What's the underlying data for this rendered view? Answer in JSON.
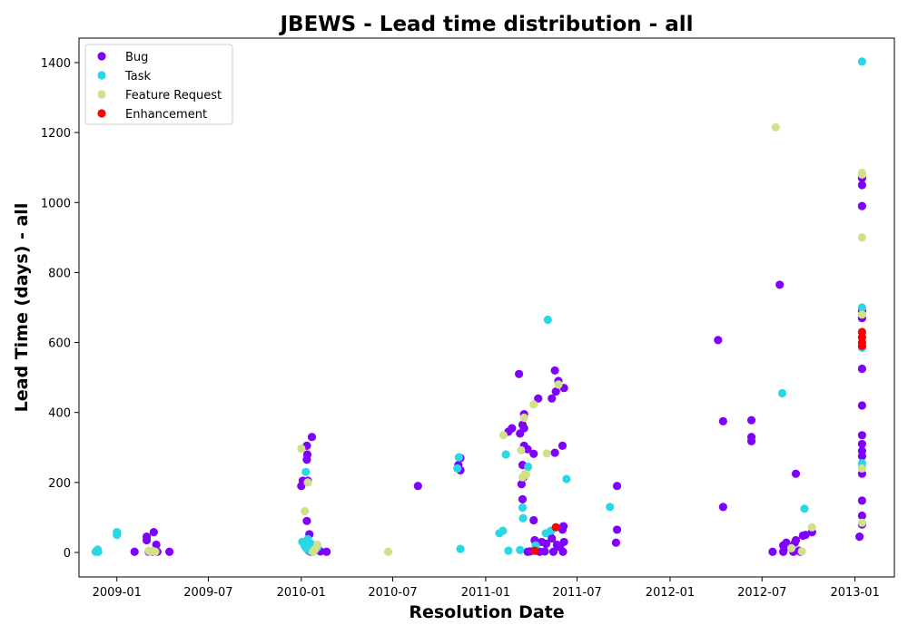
{
  "chart_data": {
    "type": "scatter",
    "title": "JBEWS - Lead time distribution - all",
    "xlabel": "Resolution Date",
    "ylabel": "Lead Time (days) - all",
    "xlim": [
      "2008-10-18",
      "2013-03-20"
    ],
    "ylim": [
      -70,
      1470
    ],
    "x_ticks": [
      "2009-01",
      "2009-07",
      "2010-01",
      "2010-07",
      "2011-01",
      "2011-07",
      "2012-01",
      "2012-07",
      "2013-01"
    ],
    "y_ticks": [
      0,
      200,
      400,
      600,
      800,
      1000,
      1200,
      1400
    ],
    "grid": false,
    "legend_position": "top-left",
    "series": [
      {
        "name": "Bug",
        "color": "#8000ff",
        "points": [
          [
            "2009-02-05",
            2
          ],
          [
            "2009-03-01",
            45
          ],
          [
            "2009-03-01",
            35
          ],
          [
            "2009-03-05",
            2
          ],
          [
            "2009-03-12",
            2
          ],
          [
            "2009-03-15",
            58
          ],
          [
            "2009-03-20",
            22
          ],
          [
            "2009-03-22",
            2
          ],
          [
            "2009-04-15",
            2
          ],
          [
            "2010-01-01",
            190
          ],
          [
            "2010-01-04",
            205
          ],
          [
            "2010-01-12",
            305
          ],
          [
            "2010-01-12",
            265
          ],
          [
            "2010-01-13",
            280
          ],
          [
            "2010-01-14",
            205
          ],
          [
            "2010-01-12",
            90
          ],
          [
            "2010-01-17",
            52
          ],
          [
            "2010-01-22",
            330
          ],
          [
            "2010-01-16",
            5
          ],
          [
            "2010-01-20",
            2
          ],
          [
            "2010-01-30",
            10
          ],
          [
            "2010-02-08",
            3
          ],
          [
            "2010-02-20",
            2
          ],
          [
            "2010-08-20",
            190
          ],
          [
            "2010-11-08",
            250
          ],
          [
            "2010-11-12",
            235
          ],
          [
            "2010-11-12",
            270
          ],
          [
            "2011-02-15",
            345
          ],
          [
            "2011-02-22",
            355
          ],
          [
            "2011-03-08",
            510
          ],
          [
            "2011-03-10",
            340
          ],
          [
            "2011-03-15",
            365
          ],
          [
            "2011-03-18",
            355
          ],
          [
            "2011-03-18",
            395
          ],
          [
            "2011-03-18",
            305
          ],
          [
            "2011-03-25",
            295
          ],
          [
            "2011-03-13",
            195
          ],
          [
            "2011-03-15",
            250
          ],
          [
            "2011-03-17",
            215
          ],
          [
            "2011-03-15",
            152
          ],
          [
            "2011-03-25",
            2
          ],
          [
            "2011-03-30",
            3
          ],
          [
            "2011-04-06",
            282
          ],
          [
            "2011-04-06",
            92
          ],
          [
            "2011-04-08",
            35
          ],
          [
            "2011-04-12",
            5
          ],
          [
            "2011-04-18",
            2
          ],
          [
            "2011-04-15",
            440
          ],
          [
            "2011-04-22",
            30
          ],
          [
            "2011-04-28",
            3
          ],
          [
            "2011-05-01",
            25
          ],
          [
            "2011-05-08",
            55
          ],
          [
            "2011-05-12",
            440
          ],
          [
            "2011-05-12",
            40
          ],
          [
            "2011-05-15",
            2
          ],
          [
            "2011-05-18",
            520
          ],
          [
            "2011-05-18",
            285
          ],
          [
            "2011-05-20",
            460
          ],
          [
            "2011-05-25",
            490
          ],
          [
            "2011-05-22",
            22
          ],
          [
            "2011-05-28",
            15
          ],
          [
            "2011-06-02",
            305
          ],
          [
            "2011-06-02",
            65
          ],
          [
            "2011-06-05",
            470
          ],
          [
            "2011-06-04",
            75
          ],
          [
            "2011-06-05",
            30
          ],
          [
            "2011-06-03",
            2
          ],
          [
            "2011-09-18",
            190
          ],
          [
            "2011-09-18",
            65
          ],
          [
            "2011-09-16",
            28
          ],
          [
            "2012-04-05",
            607
          ],
          [
            "2012-04-15",
            375
          ],
          [
            "2012-04-15",
            130
          ],
          [
            "2012-06-10",
            378
          ],
          [
            "2012-06-10",
            330
          ],
          [
            "2012-06-10",
            318
          ],
          [
            "2012-07-22",
            2
          ],
          [
            "2012-08-05",
            765
          ],
          [
            "2012-08-12",
            20
          ],
          [
            "2012-08-12",
            2
          ],
          [
            "2012-08-18",
            28
          ],
          [
            "2012-08-25",
            15
          ],
          [
            "2012-09-01",
            2
          ],
          [
            "2012-09-04",
            28
          ],
          [
            "2012-09-06",
            35
          ],
          [
            "2012-09-06",
            225
          ],
          [
            "2012-09-12",
            5
          ],
          [
            "2012-09-15",
            2
          ],
          [
            "2012-09-20",
            48
          ],
          [
            "2012-09-25",
            50
          ],
          [
            "2012-10-08",
            58
          ],
          [
            "2013-01-10",
            45
          ],
          [
            "2013-01-15",
            1050
          ],
          [
            "2013-01-15",
            1070
          ],
          [
            "2013-01-15",
            990
          ],
          [
            "2013-01-15",
            690
          ],
          [
            "2013-01-15",
            670
          ],
          [
            "2013-01-15",
            525
          ],
          [
            "2013-01-15",
            420
          ],
          [
            "2013-01-15",
            335
          ],
          [
            "2013-01-15",
            310
          ],
          [
            "2013-01-15",
            290
          ],
          [
            "2013-01-15",
            275
          ],
          [
            "2013-01-15",
            225
          ],
          [
            "2013-01-15",
            148
          ],
          [
            "2013-01-15",
            105
          ],
          [
            "2013-01-15",
            80
          ]
        ]
      },
      {
        "name": "Task",
        "color": "#28d8e6",
        "points": [
          [
            "2008-11-20",
            2
          ],
          [
            "2008-11-22",
            5
          ],
          [
            "2008-11-25",
            2
          ],
          [
            "2008-11-24",
            8
          ],
          [
            "2009-01-01",
            58
          ],
          [
            "2009-01-01",
            50
          ],
          [
            "2010-01-03",
            30
          ],
          [
            "2010-01-08",
            18
          ],
          [
            "2010-01-10",
            230
          ],
          [
            "2010-01-12",
            10
          ],
          [
            "2010-01-14",
            38
          ],
          [
            "2010-01-18",
            5
          ],
          [
            "2010-01-20",
            25
          ],
          [
            "2010-01-24",
            2
          ],
          [
            "2010-01-28",
            12
          ],
          [
            "2010-02-02",
            15
          ],
          [
            "2010-11-06",
            240
          ],
          [
            "2010-11-09",
            272
          ],
          [
            "2010-11-12",
            10
          ],
          [
            "2011-01-28",
            55
          ],
          [
            "2011-02-04",
            62
          ],
          [
            "2011-02-10",
            280
          ],
          [
            "2011-02-15",
            5
          ],
          [
            "2011-03-10",
            7
          ],
          [
            "2011-03-15",
            128
          ],
          [
            "2011-03-16",
            98
          ],
          [
            "2011-03-26",
            245
          ],
          [
            "2011-04-10",
            20
          ],
          [
            "2011-04-30",
            55
          ],
          [
            "2011-05-04",
            665
          ],
          [
            "2011-05-10",
            62
          ],
          [
            "2011-06-10",
            210
          ],
          [
            "2011-09-04",
            130
          ],
          [
            "2012-08-10",
            455
          ],
          [
            "2012-09-23",
            125
          ],
          [
            "2013-01-15",
            1403
          ],
          [
            "2013-01-15",
            700
          ],
          [
            "2013-01-15",
            585
          ],
          [
            "2013-01-15",
            255
          ],
          [
            "2013-01-15",
            245
          ]
        ]
      },
      {
        "name": "Feature Request",
        "color": "#d0e18a",
        "points": [
          [
            "2009-03-05",
            5
          ],
          [
            "2009-03-08",
            2
          ],
          [
            "2009-03-12",
            5
          ],
          [
            "2009-03-18",
            2
          ],
          [
            "2010-01-01",
            297
          ],
          [
            "2010-01-08",
            118
          ],
          [
            "2010-01-14",
            200
          ],
          [
            "2010-01-24",
            2
          ],
          [
            "2010-02-02",
            22
          ],
          [
            "2010-01-28",
            8
          ],
          [
            "2010-06-22",
            2
          ],
          [
            "2011-02-05",
            335
          ],
          [
            "2011-03-12",
            292
          ],
          [
            "2011-03-15",
            215
          ],
          [
            "2011-03-18",
            385
          ],
          [
            "2011-03-20",
            225
          ],
          [
            "2011-03-22",
            222
          ],
          [
            "2011-04-06",
            423
          ],
          [
            "2011-05-02",
            283
          ],
          [
            "2011-05-25",
            480
          ],
          [
            "2012-07-28",
            1215
          ],
          [
            "2012-08-28",
            12
          ],
          [
            "2012-09-18",
            3
          ],
          [
            "2012-10-08",
            72
          ],
          [
            "2013-01-15",
            1085
          ],
          [
            "2013-01-15",
            1080
          ],
          [
            "2013-01-15",
            900
          ],
          [
            "2013-01-15",
            680
          ],
          [
            "2013-01-15",
            240
          ],
          [
            "2013-01-15",
            85
          ]
        ]
      },
      {
        "name": "Enhancement",
        "color": "#ff0000",
        "points": [
          [
            "2011-04-08",
            5
          ],
          [
            "2011-05-20",
            72
          ],
          [
            "2013-01-15",
            630
          ],
          [
            "2013-01-15",
            615
          ],
          [
            "2013-01-15",
            600
          ],
          [
            "2013-01-15",
            590
          ]
        ]
      }
    ]
  }
}
